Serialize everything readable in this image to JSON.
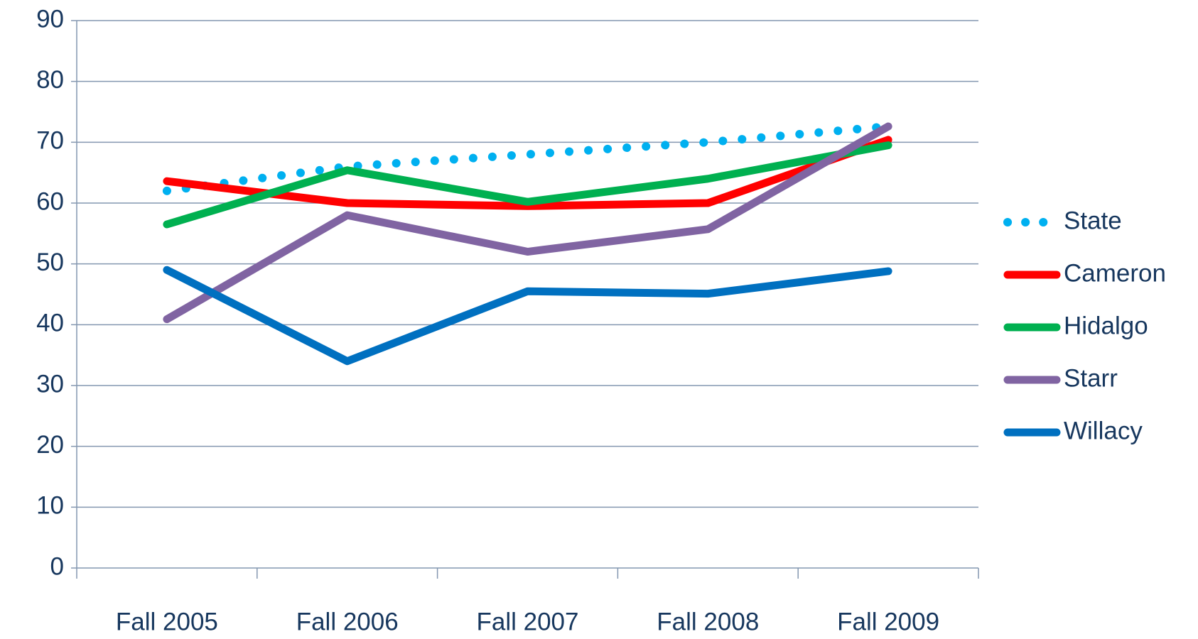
{
  "chart_data": {
    "type": "line",
    "categories": [
      "Fall 2005",
      "Fall 2006",
      "Fall 2007",
      "Fall 2008",
      "Fall 2009"
    ],
    "series": [
      {
        "name": "State",
        "color": "#00b0f0",
        "dotted": true,
        "values": [
          62,
          66,
          68,
          70,
          72.6
        ]
      },
      {
        "name": "Cameron",
        "color": "#ff0000",
        "values": [
          63.6,
          60,
          59.5,
          60,
          70.4
        ]
      },
      {
        "name": "Hidalgo",
        "color": "#00b050",
        "values": [
          56.5,
          65.4,
          60.2,
          64,
          69.5
        ]
      },
      {
        "name": "Starr",
        "color": "#8064a2",
        "values": [
          40.9,
          58,
          52,
          55.7,
          72.6
        ]
      },
      {
        "name": "Willacy",
        "color": "#0070c0",
        "values": [
          49,
          34,
          45.5,
          45.1,
          48.8
        ]
      }
    ],
    "ylim": [
      0,
      90
    ],
    "yticks": [
      0,
      10,
      20,
      30,
      40,
      50,
      60,
      70,
      80,
      90
    ],
    "grid": true,
    "legend": "right"
  }
}
